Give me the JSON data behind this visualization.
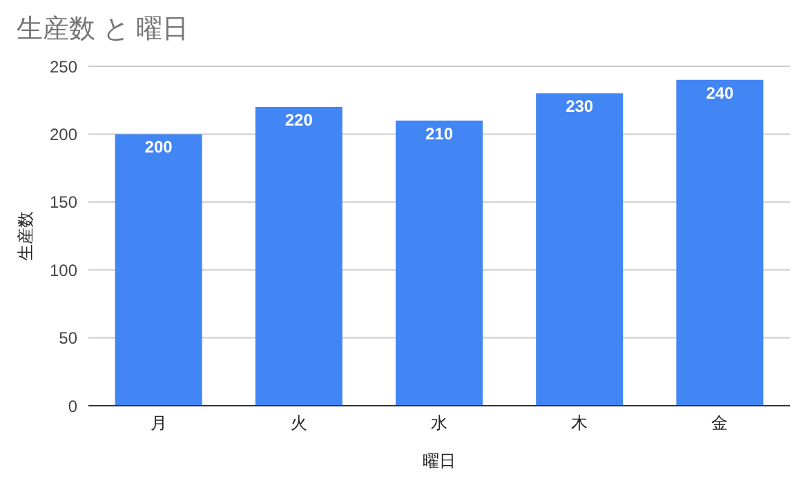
{
  "chart_data": {
    "type": "bar",
    "title": "生産数 と 曜日",
    "xlabel": "曜日",
    "ylabel": "生産数",
    "categories": [
      "月",
      "火",
      "水",
      "木",
      "金"
    ],
    "values": [
      200,
      220,
      210,
      230,
      240
    ],
    "color": "#4285f4",
    "ylim": [
      0,
      250
    ],
    "yticks": [
      0,
      50,
      100,
      150,
      200,
      250
    ],
    "grid": "y",
    "data_labels": true
  }
}
